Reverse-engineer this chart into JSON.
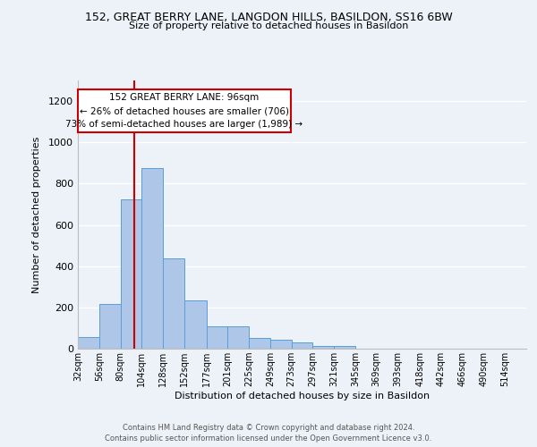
{
  "title1": "152, GREAT BERRY LANE, LANGDON HILLS, BASILDON, SS16 6BW",
  "title2": "Size of property relative to detached houses in Basildon",
  "xlabel": "Distribution of detached houses by size in Basildon",
  "ylabel": "Number of detached properties",
  "categories": [
    "32sqm",
    "56sqm",
    "80sqm",
    "104sqm",
    "128sqm",
    "152sqm",
    "177sqm",
    "201sqm",
    "225sqm",
    "249sqm",
    "273sqm",
    "297sqm",
    "321sqm",
    "345sqm",
    "369sqm",
    "393sqm",
    "418sqm",
    "442sqm",
    "466sqm",
    "490sqm",
    "514sqm"
  ],
  "values": [
    55,
    215,
    725,
    875,
    438,
    232,
    110,
    110,
    50,
    45,
    30,
    15,
    12,
    0,
    0,
    0,
    0,
    0,
    0,
    0,
    0
  ],
  "bar_color": "#aec6e8",
  "bar_edge_color": "#5a9fd4",
  "bin_edges_full": [
    32,
    56,
    80,
    104,
    128,
    152,
    177,
    201,
    225,
    249,
    273,
    297,
    321,
    345,
    369,
    393,
    418,
    442,
    466,
    490,
    514,
    538
  ],
  "annotation_text": "152 GREAT BERRY LANE: 96sqm\n← 26% of detached houses are smaller (706)\n73% of semi-detached houses are larger (1,989) →",
  "ann_x0": 32,
  "ann_x1": 272,
  "ann_y0": 1050,
  "ann_y1": 1255,
  "property_line_x": 96,
  "line_color": "#cc0000",
  "box_edge_color": "#cc0000",
  "bg_color": "#edf2f9",
  "plot_bg_color": "#edf2f9",
  "ylim": [
    0,
    1300
  ],
  "yticks": [
    0,
    200,
    400,
    600,
    800,
    1000,
    1200
  ],
  "xlim_left": 32,
  "xlim_right": 538,
  "footer": "Contains HM Land Registry data © Crown copyright and database right 2024.\nContains public sector information licensed under the Open Government Licence v3.0."
}
